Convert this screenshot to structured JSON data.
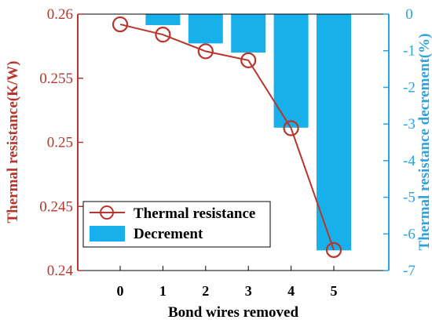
{
  "chart_data": {
    "type": "bar+line",
    "xlabel": "Bond wires removed",
    "categories": [
      "0",
      "1",
      "2",
      "3",
      "4",
      "5"
    ],
    "y_left": {
      "label": "Thermal resistance(K/W)",
      "lim": [
        0.24,
        0.26
      ],
      "ticks": [
        "0.24",
        "0.245",
        "0.25",
        "0.255",
        "0.26"
      ],
      "color": "#b8352b"
    },
    "y_right": {
      "label": "Thermal resistance decrement(%)",
      "lim": [
        -7,
        0
      ],
      "ticks": [
        "-7",
        "-6",
        "-5",
        "-4",
        "-3",
        "-2",
        "-1",
        "0"
      ],
      "color": "#2aa3e0"
    },
    "series": [
      {
        "name": "Thermal resistance",
        "kind": "line",
        "axis": "left",
        "marker": "open-circle",
        "color": "#b8352b",
        "values": [
          0.2592,
          0.2584,
          0.2571,
          0.2564,
          0.2511,
          0.2416
        ]
      },
      {
        "name": "Decrement",
        "kind": "bar",
        "axis": "right",
        "color": "#18b0ea",
        "values": [
          0,
          -0.3,
          -0.8,
          -1.05,
          -3.1,
          -6.45
        ]
      }
    ],
    "legend_position": "bottom-left",
    "grid": false
  }
}
